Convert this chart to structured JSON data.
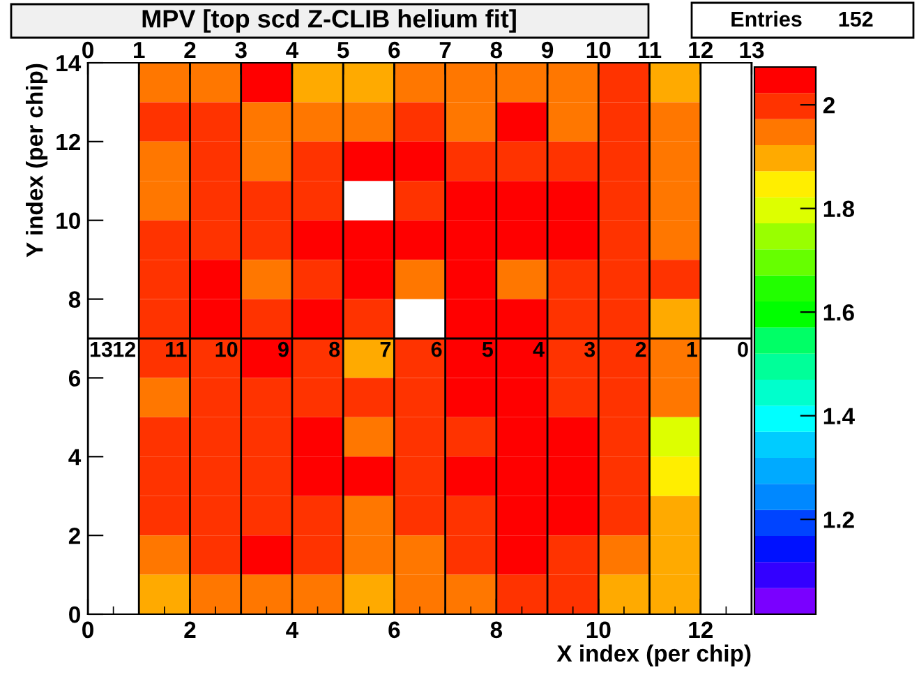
{
  "chart_data": {
    "type": "heatmap",
    "title": "MPV [top scd Z-CLIB helium fit]",
    "xlabel": "X index (per chip)",
    "ylabel": "Y index (per chip)",
    "annotations": [
      "Entries      152",
      {
        "text": "13",
        "x": 0,
        "y": 7
      },
      {
        "text": "12",
        "x": 1,
        "y": 7
      },
      {
        "text": "11",
        "x": 2,
        "y": 7
      },
      {
        "text": "10",
        "x": 3,
        "y": 7
      },
      {
        "text": "9",
        "x": 4,
        "y": 7
      },
      {
        "text": "8",
        "x": 5,
        "y": 7
      },
      {
        "text": "7",
        "x": 6,
        "y": 7
      },
      {
        "text": "6",
        "x": 7,
        "y": 7
      },
      {
        "text": "5",
        "x": 8,
        "y": 7
      },
      {
        "text": "4",
        "x": 9,
        "y": 7
      },
      {
        "text": "3",
        "x": 10,
        "y": 7
      },
      {
        "text": "2",
        "x": 11,
        "y": 7
      },
      {
        "text": "1",
        "x": 12,
        "y": 7
      },
      {
        "text": "0",
        "x": 13,
        "y": 7
      }
    ],
    "xlim": [
      0,
      13
    ],
    "xticks": [
      0,
      2,
      4,
      6,
      8,
      10,
      12
    ],
    "ylim": [
      0,
      14
    ],
    "yticks": [
      0,
      2,
      4,
      6,
      8,
      10,
      12,
      14
    ],
    "x2lim": [
      0,
      13
    ],
    "x2ticks": [
      0,
      1,
      2,
      3,
      4,
      5,
      6,
      7,
      8,
      9,
      10,
      11,
      12,
      13
    ],
    "grid": "x",
    "ref_lines": [
      {
        "axis": "y",
        "value": 7,
        "color": "#000000"
      }
    ],
    "clim": [
      1.017,
      2.073
    ],
    "cticks": [
      {
        "value": 1.2,
        "label": "1.2"
      },
      {
        "value": 1.4,
        "label": "1.4"
      },
      {
        "value": 1.6,
        "label": "1.6"
      },
      {
        "value": 1.8,
        "label": "1.8"
      },
      {
        "value": 2.0,
        "label": "2"
      }
    ],
    "colors": [
      "#7a00ff",
      "#3300ff",
      "#0011ff",
      "#0044ff",
      "#0088ff",
      "#00aaff",
      "#00ccff",
      "#00ffff",
      "#00ffcc",
      "#00ff99",
      "#00ff66",
      "#00ff00",
      "#22ff00",
      "#66ff00",
      "#99ff00",
      "#ddff00",
      "#ffee00",
      "#ffaa00",
      "#ff7700",
      "#ff3300",
      "#ff0000"
    ],
    "cells": [
      [
        null,
        1.94,
        1.94,
        2.05,
        1.89,
        1.89,
        1.94,
        1.94,
        1.94,
        1.94,
        2.0,
        1.89,
        null
      ],
      [
        null,
        2.0,
        2.0,
        1.94,
        1.94,
        1.94,
        2.0,
        1.94,
        2.05,
        1.94,
        2.0,
        1.94,
        null
      ],
      [
        null,
        1.94,
        2.0,
        1.94,
        2.0,
        2.05,
        2.05,
        2.0,
        2.0,
        2.0,
        2.0,
        1.94,
        null
      ],
      [
        null,
        1.94,
        2.0,
        2.0,
        2.0,
        null,
        2.0,
        2.05,
        2.05,
        2.05,
        2.0,
        1.94,
        null
      ],
      [
        null,
        2.0,
        2.0,
        2.0,
        2.05,
        2.05,
        2.05,
        2.05,
        2.05,
        2.05,
        2.0,
        1.94,
        null
      ],
      [
        null,
        2.0,
        2.05,
        1.94,
        2.0,
        2.05,
        1.94,
        2.05,
        1.94,
        2.0,
        2.0,
        2.0,
        null
      ],
      [
        null,
        2.0,
        2.05,
        2.0,
        2.05,
        2.0,
        null,
        2.05,
        2.05,
        2.0,
        2.0,
        1.89,
        null
      ],
      [
        null,
        2.0,
        2.0,
        2.05,
        2.0,
        1.89,
        2.0,
        2.05,
        2.05,
        2.0,
        2.0,
        1.94,
        null
      ],
      [
        null,
        1.94,
        2.0,
        2.0,
        2.0,
        2.0,
        2.0,
        2.05,
        2.05,
        2.0,
        2.0,
        1.94,
        null
      ],
      [
        null,
        2.0,
        2.0,
        2.0,
        2.05,
        1.94,
        2.0,
        2.0,
        2.05,
        2.05,
        2.0,
        1.78,
        null
      ],
      [
        null,
        2.0,
        2.0,
        2.0,
        2.05,
        2.05,
        2.0,
        2.05,
        2.05,
        2.05,
        2.0,
        1.83,
        null
      ],
      [
        null,
        2.0,
        2.0,
        2.0,
        2.0,
        1.94,
        2.0,
        2.0,
        2.05,
        2.05,
        2.0,
        1.89,
        null
      ],
      [
        null,
        1.94,
        2.0,
        2.05,
        2.0,
        1.94,
        1.94,
        2.0,
        2.05,
        2.0,
        1.94,
        1.89,
        null
      ],
      [
        null,
        1.89,
        1.94,
        1.94,
        1.94,
        1.89,
        1.94,
        1.94,
        2.0,
        2.0,
        1.89,
        1.89,
        null
      ]
    ]
  }
}
